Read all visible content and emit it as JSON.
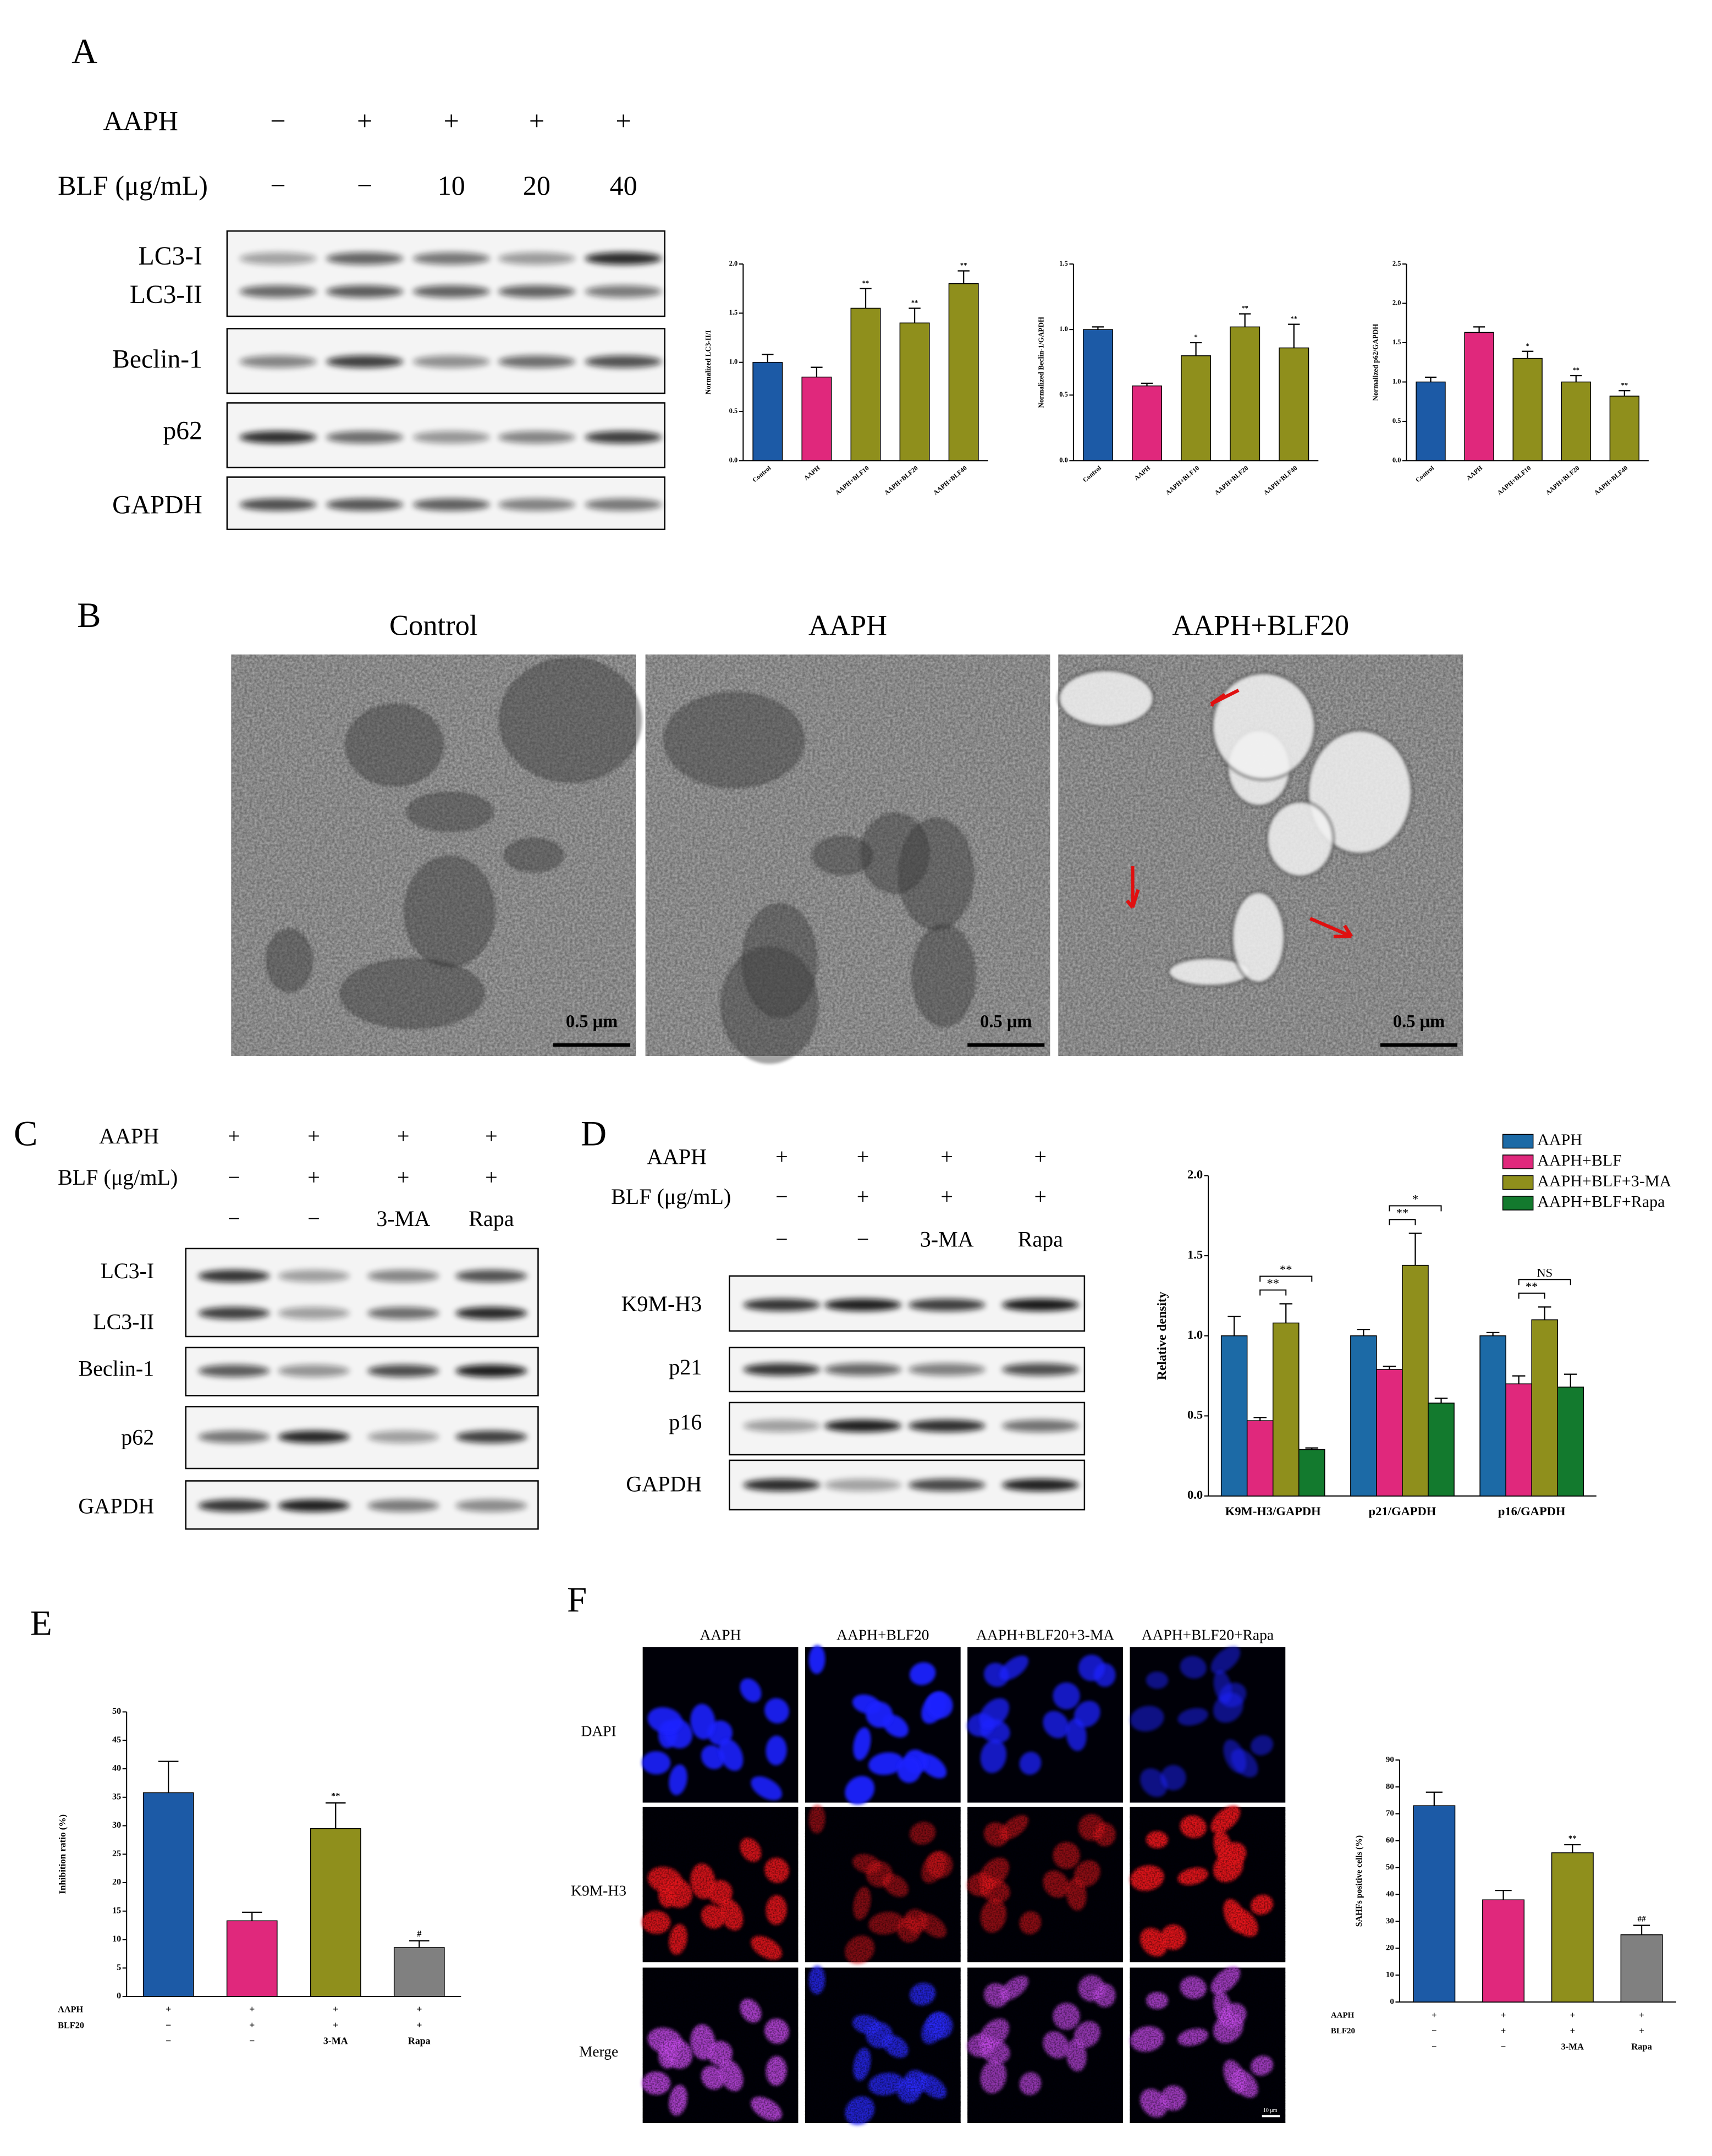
{
  "panel_letters": [
    "A",
    "B",
    "C",
    "D",
    "E",
    "F"
  ],
  "panel_a": {
    "conditions": [
      {
        "label": "AAPH",
        "marks": [
          "−",
          "+",
          "+",
          "+",
          "+"
        ]
      },
      {
        "label": "BLF (μg/mL)",
        "marks": [
          "−",
          "−",
          "10",
          "20",
          "40"
        ]
      }
    ],
    "blots": [
      "LC3-I",
      "LC3-II",
      "Beclin-1",
      "p62",
      "GAPDH"
    ]
  },
  "panel_b": {
    "titles": [
      "Control",
      "AAPH",
      "AAPH+BLF20"
    ],
    "scale_bars": [
      "0.5 μm",
      "0.5 μm",
      "0.5 μm"
    ]
  },
  "panel_c": {
    "conditions": [
      {
        "label": "AAPH",
        "marks": [
          "+",
          "+",
          "+",
          "+"
        ]
      },
      {
        "label": "BLF (μg/mL)",
        "marks": [
          "−",
          "+",
          "+",
          "+"
        ]
      },
      {
        "marks": [
          "−",
          "−",
          "3-MA",
          "Rapa"
        ]
      }
    ],
    "blots": [
      "LC3-I",
      "LC3-II",
      "Beclin-1",
      "p62",
      "GAPDH"
    ]
  },
  "panel_d": {
    "conditions": [
      {
        "label": "AAPH",
        "marks": [
          "+",
          "+",
          "+",
          "+"
        ]
      },
      {
        "label": "BLF (μg/mL)",
        "marks": [
          "−",
          "+",
          "+",
          "+"
        ]
      },
      {
        "marks": [
          "−",
          "−",
          "3-MA",
          "Rapa"
        ]
      }
    ],
    "blots": [
      "K9M-H3",
      "p21",
      "p16",
      "GAPDH"
    ]
  },
  "panel_f": {
    "columns": [
      "AAPH",
      "AAPH+BLF20",
      "AAPH+BLF20+3-MA",
      "AAPH+BLF20+Rapa"
    ],
    "rows": [
      "DAPI",
      "K9M-H3",
      "Merge"
    ],
    "scale_bar": "10 μm"
  },
  "chart_data": [
    {
      "type": "bar",
      "y_label": "Normalized LC3-II/I",
      "categories": [
        "Control",
        "AAPH",
        "AAPH+BLF10",
        "AAPH+BLF20",
        "AAPH+BLF40"
      ],
      "values": [
        1.0,
        0.85,
        1.55,
        1.4,
        1.8
      ],
      "errors": [
        0.08,
        0.1,
        0.2,
        0.15,
        0.13
      ],
      "annotations": [
        null,
        null,
        "**",
        "**",
        "**"
      ],
      "colors": [
        "#1c5aa6",
        "#e0287c",
        "#8f8f1c",
        "#8f8f1c",
        "#8f8f1c"
      ],
      "ylim": [
        0,
        2
      ],
      "yticks": [
        {
          "value": 0,
          "label": "0.0"
        },
        0.5,
        {
          "value": 1,
          "label": "1.0"
        },
        1.5,
        {
          "value": 2,
          "label": "2.0"
        }
      ]
    },
    {
      "type": "bar",
      "y_label": "Normalized Beclin-1/GAPDH",
      "categories": [
        "Control",
        "AAPH",
        "AAPH+BLF10",
        "AAPH+BLF20",
        "AAPH+BLF40"
      ],
      "values": [
        1.0,
        0.57,
        0.8,
        1.02,
        0.86
      ],
      "errors": [
        0.02,
        0.02,
        0.1,
        0.1,
        0.18
      ],
      "annotations": [
        null,
        null,
        "*",
        "**",
        "**"
      ],
      "colors": [
        "#1c5aa6",
        "#e0287c",
        "#8f8f1c",
        "#8f8f1c",
        "#8f8f1c"
      ],
      "ylim": [
        0,
        1.5
      ],
      "yticks": [
        {
          "value": 0,
          "label": "0.0"
        },
        0.5,
        {
          "value": 1,
          "label": "1.0"
        },
        1.5
      ]
    },
    {
      "type": "bar",
      "y_label": "Normalized p62/GAPDH",
      "categories": [
        "Control",
        "AAPH",
        "AAPH+BLF10",
        "AAPH+BLF20",
        "AAPH+BLF40"
      ],
      "values": [
        1.0,
        1.63,
        1.3,
        1.0,
        0.82
      ],
      "errors": [
        0.06,
        0.07,
        0.09,
        0.08,
        0.07
      ],
      "annotations": [
        null,
        null,
        "*",
        "**",
        "**"
      ],
      "colors": [
        "#1c5aa6",
        "#e0287c",
        "#8f8f1c",
        "#8f8f1c",
        "#8f8f1c"
      ],
      "ylim": [
        0,
        2.5
      ],
      "yticks": [
        {
          "value": 0,
          "label": "0.0"
        },
        0.5,
        {
          "value": 1,
          "label": "1.0"
        },
        1.5,
        {
          "value": 2,
          "label": "2.0"
        },
        2.5
      ]
    },
    {
      "type": "grouped_bar",
      "y_label": "Relative density",
      "categories": [
        "K9M-H3/GAPDH",
        "p21/GAPDH",
        "p16/GAPDH"
      ],
      "series": [
        {
          "name": "AAPH",
          "color": "#1c6aa6",
          "values": [
            1.0,
            1.0,
            1.0
          ],
          "errors": [
            0.12,
            0.04,
            0.02
          ]
        },
        {
          "name": "AAPH+BLF",
          "color": "#e0287c",
          "values": [
            0.47,
            0.79,
            0.7
          ],
          "errors": [
            0.02,
            0.02,
            0.05
          ]
        },
        {
          "name": "AAPH+BLF+3-MA",
          "color": "#8f8f1c",
          "values": [
            1.08,
            1.44,
            1.1
          ],
          "errors": [
            0.12,
            0.2,
            0.08
          ]
        },
        {
          "name": "AAPH+BLF+Rapa",
          "color": "#137a2e",
          "values": [
            0.29,
            0.58,
            0.68
          ],
          "errors": [
            0.01,
            0.03,
            0.08
          ]
        }
      ],
      "comparisons": [
        [
          "**",
          "**"
        ],
        [
          "**",
          "*"
        ],
        [
          "**",
          "NS"
        ]
      ],
      "ylim": [
        0,
        2
      ],
      "yticks": [
        {
          "value": 0,
          "label": "0.0"
        },
        0.5,
        {
          "value": 1,
          "label": "1.0"
        },
        1.5,
        {
          "value": 2,
          "label": "2.0"
        }
      ],
      "legend": "top-right"
    },
    {
      "type": "bar",
      "y_label": "Inhibition ratio (%)",
      "values": [
        35.8,
        13.3,
        29.5,
        8.6
      ],
      "errors": [
        5.5,
        1.5,
        4.5,
        1.2
      ],
      "annotations": [
        null,
        null,
        "**",
        "#"
      ],
      "colors": [
        "#1c5aa6",
        "#e0287c",
        "#8f8f1c",
        "#808080"
      ],
      "ylim": [
        0,
        50
      ],
      "yticks": [
        0,
        5,
        10,
        15,
        20,
        25,
        30,
        35,
        40,
        45,
        50
      ],
      "conditions": [
        {
          "label": "AAPH",
          "marks": [
            "+",
            "+",
            "+",
            "+"
          ]
        },
        {
          "label": "BLF20",
          "marks": [
            "−",
            "+",
            "+",
            "+"
          ]
        },
        {
          "marks": [
            "−",
            "−",
            "3-MA",
            "Rapa"
          ]
        }
      ]
    },
    {
      "type": "bar",
      "y_label": "SAHFs positive cells (%)",
      "values": [
        73,
        38,
        55.5,
        25
      ],
      "errors": [
        5,
        3.5,
        3,
        3.5
      ],
      "annotations": [
        null,
        null,
        "**",
        "##"
      ],
      "colors": [
        "#1c5aa6",
        "#e0287c",
        "#8f8f1c",
        "#808080"
      ],
      "ylim": [
        0,
        90
      ],
      "yticks": [
        0,
        10,
        20,
        30,
        40,
        50,
        60,
        70,
        80,
        90
      ],
      "conditions": [
        {
          "label": "AAPH",
          "marks": [
            "+",
            "+",
            "+",
            "+"
          ]
        },
        {
          "label": "BLF20",
          "marks": [
            "−",
            "+",
            "+",
            "+"
          ]
        },
        {
          "marks": [
            "−",
            "−",
            "3-MA",
            "Rapa"
          ]
        }
      ]
    }
  ]
}
